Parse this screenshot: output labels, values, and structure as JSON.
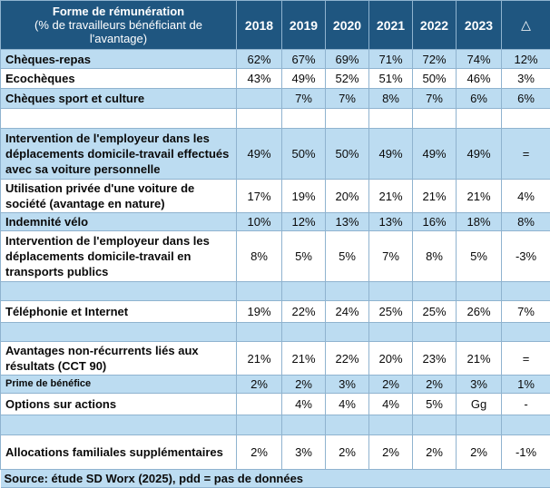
{
  "header": {
    "label_line1": "Forme de rémunération",
    "label_line2": "(% de travailleurs bénéficiant de l'avantage)",
    "years": [
      "2018",
      "2019",
      "2020",
      "2021",
      "2022",
      "2023"
    ],
    "delta": "△"
  },
  "rows": [
    {
      "label": "Chèques-repas",
      "values": [
        "62%",
        "67%",
        "69%",
        "71%",
        "72%",
        "74%",
        "12%"
      ]
    },
    {
      "label": "Ecochèques",
      "values": [
        "43%",
        "49%",
        "52%",
        "51%",
        "50%",
        "46%",
        "3%"
      ]
    },
    {
      "label": "Chèques sport et culture",
      "values": [
        "",
        "7%",
        "7%",
        "8%",
        "7%",
        "6%",
        "6%"
      ]
    },
    {
      "label": "",
      "values": [
        "",
        "",
        "",
        "",
        "",
        "",
        ""
      ]
    },
    {
      "label": "Intervention de l'employeur dans les déplacements domicile-travail effectués avec sa voiture personnelle",
      "values": [
        "49%",
        "50%",
        "50%",
        "49%",
        "49%",
        "49%",
        "="
      ]
    },
    {
      "label": "Utilisation privée d'une voiture de société (avantage en nature)",
      "values": [
        "17%",
        "19%",
        "20%",
        "21%",
        "21%",
        "21%",
        "4%"
      ]
    },
    {
      "label": "Indemnité vélo",
      "values": [
        "10%",
        "12%",
        "13%",
        "13%",
        "16%",
        "18%",
        "8%"
      ]
    },
    {
      "label": "Intervention de l'employeur dans les déplacements domicile-travail en transports publics",
      "values": [
        "8%",
        "5%",
        "5%",
        "7%",
        "8%",
        "5%",
        "-3%"
      ]
    },
    {
      "label": "",
      "values": [
        "",
        "",
        "",
        "",
        "",
        "",
        ""
      ]
    },
    {
      "label": "Téléphonie et Internet",
      "values": [
        "19%",
        "22%",
        "24%",
        "25%",
        "25%",
        "26%",
        "7%"
      ]
    },
    {
      "label": "",
      "values": [
        "",
        "",
        "",
        "",
        "",
        "",
        ""
      ]
    },
    {
      "label": "Avantages non-récurrents liés aux résultats (CCT 90)",
      "values": [
        "21%",
        "21%",
        "22%",
        "20%",
        "23%",
        "21%",
        "="
      ]
    },
    {
      "label": "Prime de bénéfice",
      "values": [
        "2%",
        "2%",
        "3%",
        "2%",
        "2%",
        "3%",
        "1%"
      ]
    },
    {
      "label": "Options sur actions",
      "values": [
        "",
        "4%",
        "4%",
        "4%",
        "5%",
        "Gg",
        "-"
      ]
    },
    {
      "label": "",
      "values": [
        "",
        "",
        "",
        "",
        "",
        "",
        ""
      ]
    },
    {
      "label": "Allocations familiales supplémentaires",
      "values": [
        "2%",
        "3%",
        "2%",
        "2%",
        "2%",
        "2%",
        "-1%"
      ]
    }
  ],
  "source": "Source: étude SD Worx (2025), pdd = pas de données"
}
